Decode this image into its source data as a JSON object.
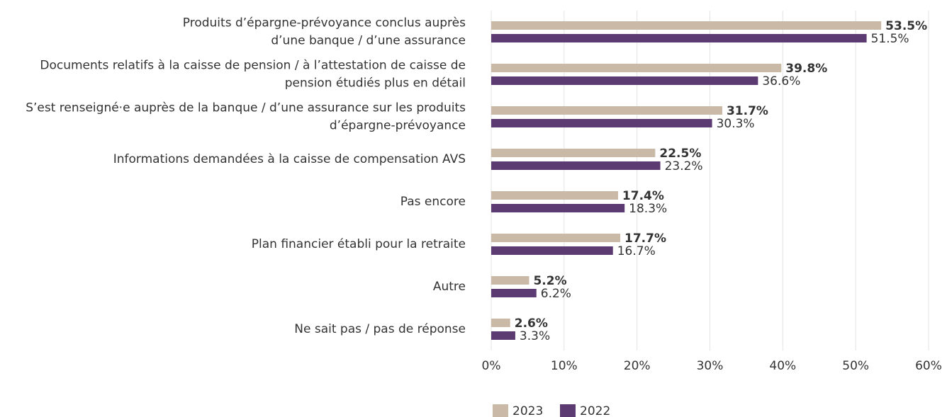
{
  "chart_data": {
    "type": "hbar",
    "categories": [
      "Produits d’épargne-prévoyance conclus auprès\nd’une banque / d’une assurance",
      "Documents relatifs à la caisse de pension / à l’attestation de caisse de\npension étudiés plus en détail",
      "S’est renseigné·e auprès de la banque / d’une assurance sur les produits\nd’épargne-prévoyance",
      "Informations demandées à la caisse de compensation AVS",
      "Pas encore",
      "Plan financier établi pour la retraite",
      "Autre",
      "Ne sait pas / pas de réponse"
    ],
    "series": [
      {
        "name": "2023",
        "color": "#c9b9a6",
        "values": [
          53.5,
          39.8,
          31.7,
          22.5,
          17.4,
          17.7,
          5.2,
          2.6
        ],
        "value_labels": [
          "53.5%",
          "39.8%",
          "31.7%",
          "22.5%",
          "17.4%",
          "17.7%",
          "5.2%",
          "2.6%"
        ]
      },
      {
        "name": "2022",
        "color": "#5c3b72",
        "values": [
          51.5,
          36.6,
          30.3,
          23.2,
          18.3,
          16.7,
          6.2,
          3.3
        ],
        "value_labels": [
          "51.5%",
          "36.6%",
          "30.3%",
          "23.2%",
          "18.3%",
          "16.7%",
          "6.2%",
          "3.3%"
        ]
      }
    ],
    "xlim": [
      0,
      60
    ],
    "xticks": [
      {
        "value": 0,
        "label": "0%"
      },
      {
        "value": 10,
        "label": "10%"
      },
      {
        "value": 20,
        "label": "20%"
      },
      {
        "value": 30,
        "label": "30%"
      },
      {
        "value": 40,
        "label": "40%"
      },
      {
        "value": 50,
        "label": "50%"
      },
      {
        "value": 60,
        "label": "60%"
      }
    ],
    "grid": true,
    "legend": "bottom"
  }
}
